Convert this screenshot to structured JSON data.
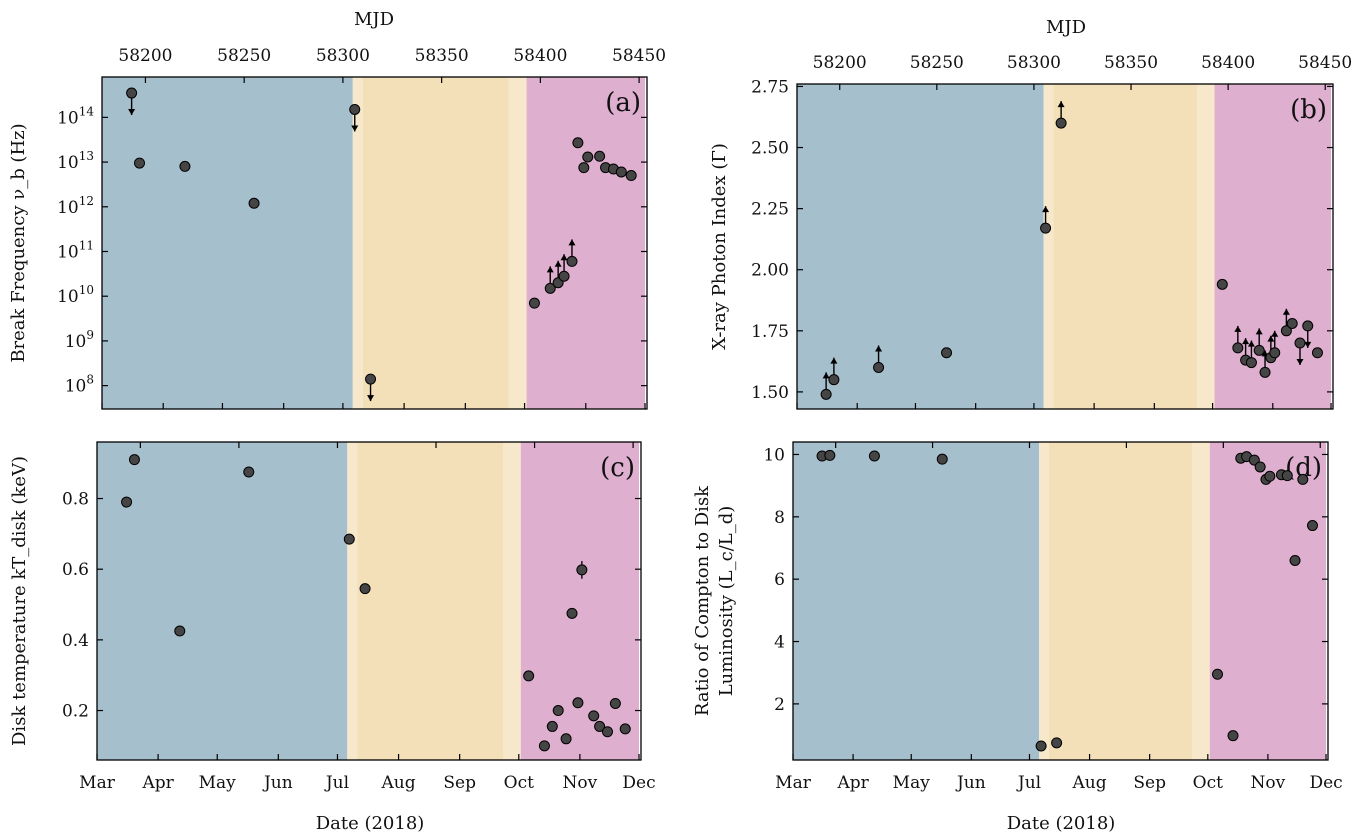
{
  "figure": {
    "top_axis_label": "MJD",
    "bottom_axis_label": "Date (2018)",
    "mjd_ticks": [
      58200,
      58250,
      58300,
      58350,
      58400,
      58450
    ],
    "month_ticks": [
      "Mar",
      "Apr",
      "May",
      "Jun",
      "Jul",
      "Aug",
      "Sep",
      "Oct",
      "Nov",
      "Dec"
    ],
    "colors": {
      "phase_1": "#a5bfcc",
      "phase_2_edge": "#f7e8cb",
      "phase_2": "#f3e0b8",
      "phase_3": "#dfafcf",
      "marker": "#454545"
    }
  },
  "chart_data": [
    {
      "id": "a",
      "type": "scatter",
      "panel_label": "(a)",
      "ylabel": "Break Frequency ν_b (Hz)",
      "yscale": "log",
      "ylim": [
        30000000.0,
        800000000000000.0
      ],
      "yticks": [
        {
          "exp": 8,
          "label": "10",
          "sup": "8"
        },
        {
          "exp": 9,
          "label": "10",
          "sup": "9"
        },
        {
          "exp": 10,
          "label": "10",
          "sup": "10"
        },
        {
          "exp": 11,
          "label": "10",
          "sup": "11"
        },
        {
          "exp": 12,
          "label": "10",
          "sup": "12"
        },
        {
          "exp": 13,
          "label": "10",
          "sup": "13"
        },
        {
          "exp": 14,
          "label": "10",
          "sup": "14"
        }
      ],
      "points": [
        {
          "mjd": 58193,
          "y": 350000000000000.0,
          "limit": "upper"
        },
        {
          "mjd": 58197,
          "y": 9500000000000.0
        },
        {
          "mjd": 58220,
          "y": 8000000000000.0
        },
        {
          "mjd": 58255,
          "y": 1200000000000.0
        },
        {
          "mjd": 58306,
          "y": 150000000000000.0,
          "limit": "upper"
        },
        {
          "mjd": 58314,
          "y": 140000000.0,
          "limit": "upper"
        },
        {
          "mjd": 58397,
          "y": 7000000000.0
        },
        {
          "mjd": 58405,
          "y": 15000000000.0,
          "limit": "lower"
        },
        {
          "mjd": 58409,
          "y": 20000000000.0,
          "limit": "lower"
        },
        {
          "mjd": 58412,
          "y": 28000000000.0,
          "limit": "lower"
        },
        {
          "mjd": 58416,
          "y": 60000000000.0,
          "limit": "lower"
        },
        {
          "mjd": 58419,
          "y": 27000000000000.0
        },
        {
          "mjd": 58422,
          "y": 7500000000000.0
        },
        {
          "mjd": 58424,
          "y": 13000000000000.0
        },
        {
          "mjd": 58430,
          "y": 13500000000000.0
        },
        {
          "mjd": 58433,
          "y": 7500000000000.0
        },
        {
          "mjd": 58437,
          "y": 7000000000000.0
        },
        {
          "mjd": 58441,
          "y": 6000000000000.0
        },
        {
          "mjd": 58446,
          "y": 5000000000000.0
        }
      ]
    },
    {
      "id": "b",
      "type": "scatter",
      "panel_label": "(b)",
      "ylabel": "X-ray Photon Index (Γ)",
      "yscale": "linear",
      "ylim": [
        1.43,
        2.76
      ],
      "yticks": [
        {
          "v": 1.5,
          "label": "1.50"
        },
        {
          "v": 1.75,
          "label": "1.75"
        },
        {
          "v": 2.0,
          "label": "2.00"
        },
        {
          "v": 2.25,
          "label": "2.25"
        },
        {
          "v": 2.5,
          "label": "2.50"
        },
        {
          "v": 2.75,
          "label": "2.75"
        }
      ],
      "points": [
        {
          "mjd": 58193,
          "y": 1.49,
          "limit": "lower"
        },
        {
          "mjd": 58197,
          "y": 1.55,
          "limit": "lower"
        },
        {
          "mjd": 58220,
          "y": 1.6,
          "limit": "lower"
        },
        {
          "mjd": 58255,
          "y": 1.66
        },
        {
          "mjd": 58306,
          "y": 2.17,
          "limit": "lower"
        },
        {
          "mjd": 58314,
          "y": 2.6,
          "limit": "lower"
        },
        {
          "mjd": 58397,
          "y": 1.94
        },
        {
          "mjd": 58405,
          "y": 1.68,
          "limit": "lower"
        },
        {
          "mjd": 58409,
          "y": 1.63,
          "limit": "lower"
        },
        {
          "mjd": 58412,
          "y": 1.62,
          "limit": "lower"
        },
        {
          "mjd": 58416,
          "y": 1.67,
          "limit": "lower"
        },
        {
          "mjd": 58419,
          "y": 1.58,
          "limit": "lower"
        },
        {
          "mjd": 58422,
          "y": 1.64,
          "limit": "lower"
        },
        {
          "mjd": 58424,
          "y": 1.66,
          "limit": "lower"
        },
        {
          "mjd": 58430,
          "y": 1.75,
          "limit": "lower"
        },
        {
          "mjd": 58433,
          "y": 1.78
        },
        {
          "mjd": 58437,
          "y": 1.7,
          "limit": "upper"
        },
        {
          "mjd": 58441,
          "y": 1.77,
          "limit": "upper"
        },
        {
          "mjd": 58446,
          "y": 1.66
        }
      ]
    },
    {
      "id": "c",
      "type": "scatter",
      "panel_label": "(c)",
      "ylabel": "Disk temperature kT_disk (keV)",
      "yscale": "linear",
      "ylim": [
        0.06,
        0.96
      ],
      "yticks": [
        {
          "v": 0.2,
          "label": "0.2"
        },
        {
          "v": 0.4,
          "label": "0.4"
        },
        {
          "v": 0.6,
          "label": "0.6"
        },
        {
          "v": 0.8,
          "label": "0.8"
        }
      ],
      "points": [
        {
          "mjd": 58193,
          "y": 0.79,
          "err": 0.015
        },
        {
          "mjd": 58197,
          "y": 0.91
        },
        {
          "mjd": 58220,
          "y": 0.425
        },
        {
          "mjd": 58255,
          "y": 0.875
        },
        {
          "mjd": 58306,
          "y": 0.685
        },
        {
          "mjd": 58314,
          "y": 0.545
        },
        {
          "mjd": 58397,
          "y": 0.298
        },
        {
          "mjd": 58405,
          "y": 0.1
        },
        {
          "mjd": 58409,
          "y": 0.155
        },
        {
          "mjd": 58412,
          "y": 0.2
        },
        {
          "mjd": 58416,
          "y": 0.12
        },
        {
          "mjd": 58419,
          "y": 0.475,
          "err": 0.015
        },
        {
          "mjd": 58422,
          "y": 0.222,
          "err": 0.015
        },
        {
          "mjd": 58424,
          "y": 0.598,
          "err": 0.025
        },
        {
          "mjd": 58430,
          "y": 0.185
        },
        {
          "mjd": 58433,
          "y": 0.155
        },
        {
          "mjd": 58437,
          "y": 0.14
        },
        {
          "mjd": 58441,
          "y": 0.22
        },
        {
          "mjd": 58446,
          "y": 0.148
        }
      ]
    },
    {
      "id": "d",
      "type": "scatter",
      "panel_label": "(d)",
      "ylabel_line1": "Ratio of Compton to Disk",
      "ylabel_line2": "Luminosity (L_c/L_d)",
      "yscale": "linear",
      "ylim": [
        0.2,
        10.4
      ],
      "yticks": [
        {
          "v": 2,
          "label": "2"
        },
        {
          "v": 4,
          "label": "4"
        },
        {
          "v": 6,
          "label": "6"
        },
        {
          "v": 8,
          "label": "8"
        },
        {
          "v": 10,
          "label": "10"
        }
      ],
      "points": [
        {
          "mjd": 58193,
          "y": 9.95
        },
        {
          "mjd": 58197,
          "y": 9.97
        },
        {
          "mjd": 58220,
          "y": 9.95
        },
        {
          "mjd": 58255,
          "y": 9.85
        },
        {
          "mjd": 58306,
          "y": 0.65
        },
        {
          "mjd": 58314,
          "y": 0.75
        },
        {
          "mjd": 58397,
          "y": 2.95
        },
        {
          "mjd": 58405,
          "y": 0.98
        },
        {
          "mjd": 58409,
          "y": 9.88
        },
        {
          "mjd": 58412,
          "y": 9.93
        },
        {
          "mjd": 58416,
          "y": 9.82
        },
        {
          "mjd": 58419,
          "y": 9.6
        },
        {
          "mjd": 58422,
          "y": 9.2
        },
        {
          "mjd": 58424,
          "y": 9.3
        },
        {
          "mjd": 58430,
          "y": 9.35
        },
        {
          "mjd": 58433,
          "y": 9.32
        },
        {
          "mjd": 58437,
          "y": 6.6
        },
        {
          "mjd": 58441,
          "y": 9.2
        },
        {
          "mjd": 58446,
          "y": 7.72
        }
      ]
    }
  ]
}
